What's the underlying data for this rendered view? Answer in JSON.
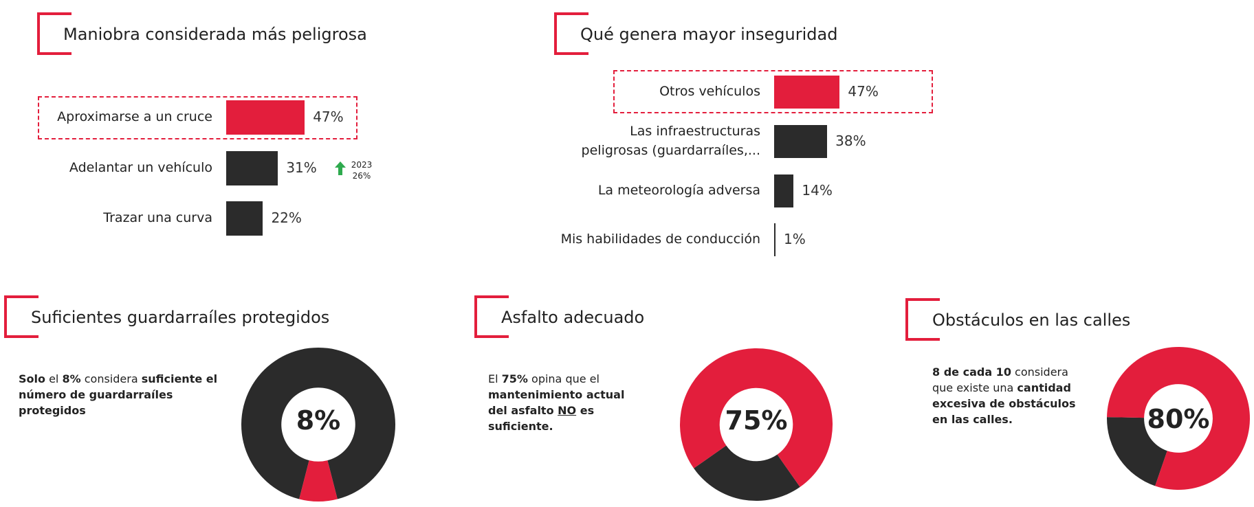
{
  "colors": {
    "accent": "#e31e3c",
    "dark": "#2b2b2b",
    "up": "#2eaa4e"
  },
  "chart_data": [
    {
      "type": "bar",
      "title": "Maniobra considerada más peligrosa",
      "categories": [
        "Aproximarse a un cruce",
        "Adelantar un vehículo",
        "Trazar una curva"
      ],
      "values": [
        47,
        31,
        22
      ],
      "labels": [
        "47%",
        "31%",
        "22%"
      ],
      "highlight": 0,
      "annotation": {
        "icon": "arrow-up-icon",
        "year": "2023",
        "value": "26%"
      }
    },
    {
      "type": "bar",
      "title": "Qué genera mayor inseguridad",
      "categories": [
        "Otros vehículos",
        "Las infraestructuras peligrosas (guardarraíles,...",
        "La meteorología adversa",
        "Mis habilidades de conducción"
      ],
      "categories_lines": [
        [
          "Otros vehículos"
        ],
        [
          "Las infraestructuras",
          "peligrosas (guardarraíles,..."
        ],
        [
          "La meteorología adversa"
        ],
        [
          "Mis habilidades de conducción"
        ]
      ],
      "values": [
        47,
        38,
        14,
        1
      ],
      "labels": [
        "47%",
        "38%",
        "14%",
        "1%"
      ],
      "highlight": 0
    },
    {
      "type": "pie",
      "title": "Suficientes guardarraíles protegidos",
      "value": 8,
      "label": "8%",
      "primary_color": "#e31e3c",
      "secondary_color": "#2b2b2b",
      "description_parts": [
        {
          "text": "Solo",
          "bold": true
        },
        {
          "text": " el ",
          "bold": false
        },
        {
          "text": "8%",
          "bold": true
        },
        {
          "text": " considera ",
          "bold": false
        },
        {
          "text": "suficiente el número de guardarraíles protegidos",
          "bold": true
        }
      ]
    },
    {
      "type": "pie",
      "title": "Asfalto adecuado",
      "value": 75,
      "label": "75%",
      "primary_color": "#e31e3c",
      "secondary_color": "#2b2b2b",
      "description_parts": [
        {
          "text": "El ",
          "bold": false
        },
        {
          "text": "75%",
          "bold": true
        },
        {
          "text": " opina que el ",
          "bold": false
        },
        {
          "text": "mantenimiento actual del asfalto ",
          "bold": true
        },
        {
          "text": "NO",
          "bold": true,
          "underline": true
        },
        {
          "text": " es suficiente.",
          "bold": true
        }
      ]
    },
    {
      "type": "pie",
      "title": "Obstáculos en las calles",
      "value": 80,
      "label": "80%",
      "primary_color": "#e31e3c",
      "secondary_color": "#2b2b2b",
      "description_parts": [
        {
          "text": "8 de cada 10",
          "bold": true
        },
        {
          "text": " considera que existe una ",
          "bold": false
        },
        {
          "text": "cantidad excesiva de obstáculos en las calles.",
          "bold": true
        }
      ]
    }
  ]
}
